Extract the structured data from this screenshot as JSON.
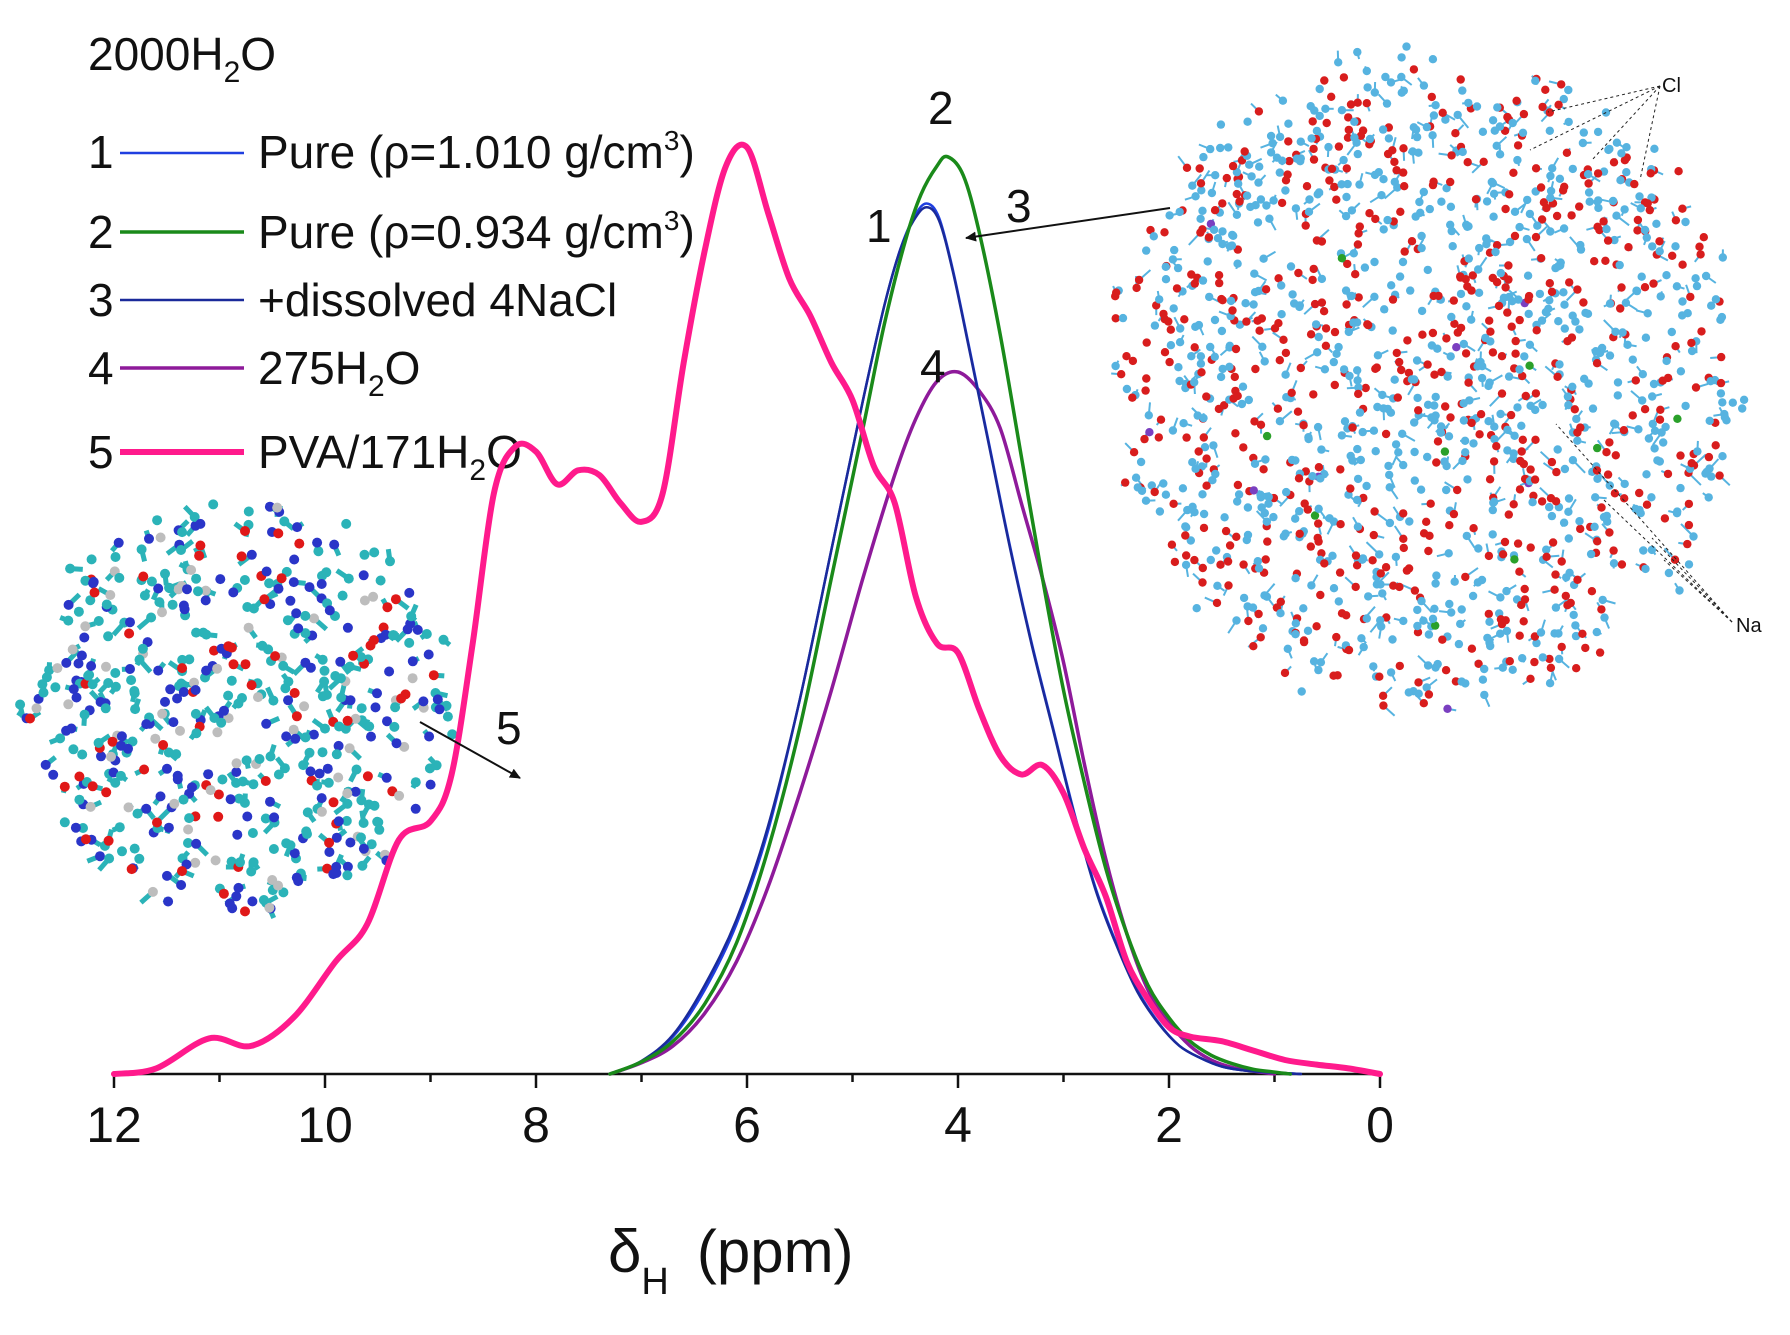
{
  "chart_data": {
    "type": "line",
    "title": "2000H₂O",
    "xlabel": "δH (ppm)",
    "xlabel_symbol": "δ",
    "xlabel_sub": "H",
    "xlabel_unit": "(ppm)",
    "ylabel": "",
    "xlim": [
      12,
      0
    ],
    "xticks": [
      12,
      10,
      8,
      6,
      4,
      2,
      0
    ],
    "ylim": [
      0,
      1.0
    ],
    "grid": false,
    "legend_position": "top-left",
    "series": [
      {
        "id": "1",
        "name": "Pure (ρ=1.010 g/cm³)",
        "color": "#1f3fe0",
        "width": 2.5,
        "x": [
          7.3,
          7.0,
          6.7,
          6.4,
          6.1,
          5.8,
          5.5,
          5.2,
          4.9,
          4.7,
          4.55,
          4.42,
          4.3,
          4.18,
          4.05,
          3.9,
          3.7,
          3.5,
          3.3,
          3.1,
          2.9,
          2.7,
          2.5,
          2.3,
          2.1,
          1.9,
          1.7,
          1.5,
          1.3,
          1.1,
          0.9,
          0.75
        ],
        "y": [
          0.0,
          0.013,
          0.04,
          0.09,
          0.16,
          0.26,
          0.4,
          0.56,
          0.72,
          0.82,
          0.88,
          0.915,
          0.93,
          0.915,
          0.86,
          0.78,
          0.67,
          0.56,
          0.46,
          0.37,
          0.28,
          0.2,
          0.14,
          0.09,
          0.055,
          0.03,
          0.017,
          0.008,
          0.004,
          0.002,
          0.001,
          0.0
        ]
      },
      {
        "id": "2",
        "name": "Pure (ρ=0.934 g/cm³)",
        "color": "#1a8a1a",
        "width": 3.5,
        "x": [
          7.3,
          7.0,
          6.7,
          6.4,
          6.1,
          5.8,
          5.5,
          5.2,
          4.9,
          4.7,
          4.5,
          4.35,
          4.2,
          4.1,
          3.95,
          3.8,
          3.6,
          3.4,
          3.2,
          3.0,
          2.8,
          2.6,
          2.4,
          2.2,
          2.0,
          1.8,
          1.6,
          1.4,
          1.2,
          1.0,
          0.85
        ],
        "y": [
          0.0,
          0.013,
          0.035,
          0.075,
          0.14,
          0.24,
          0.37,
          0.53,
          0.69,
          0.8,
          0.89,
          0.94,
          0.97,
          0.98,
          0.96,
          0.9,
          0.79,
          0.66,
          0.53,
          0.41,
          0.31,
          0.22,
          0.15,
          0.095,
          0.06,
          0.035,
          0.02,
          0.011,
          0.005,
          0.002,
          0.0
        ]
      },
      {
        "id": "3",
        "name": "+dissolved 4NaCl",
        "color": "#1a2a9a",
        "width": 2.5,
        "x": [
          7.3,
          7.0,
          6.7,
          6.4,
          6.1,
          5.8,
          5.5,
          5.2,
          4.9,
          4.7,
          4.55,
          4.42,
          4.3,
          4.18,
          4.05,
          3.9,
          3.7,
          3.5,
          3.3,
          3.1,
          2.9,
          2.7,
          2.5,
          2.3,
          2.1,
          1.9,
          1.7,
          1.5,
          1.3,
          1.1,
          0.9,
          0.75
        ],
        "y": [
          0.0,
          0.014,
          0.042,
          0.095,
          0.165,
          0.265,
          0.4,
          0.56,
          0.72,
          0.82,
          0.88,
          0.912,
          0.926,
          0.912,
          0.858,
          0.778,
          0.668,
          0.558,
          0.458,
          0.368,
          0.278,
          0.198,
          0.138,
          0.088,
          0.054,
          0.03,
          0.017,
          0.008,
          0.004,
          0.002,
          0.001,
          0.0
        ]
      },
      {
        "id": "4",
        "name": "275H₂O",
        "color": "#8e1a9a",
        "width": 3.5,
        "x": [
          7.3,
          7.0,
          6.7,
          6.4,
          6.1,
          5.8,
          5.5,
          5.2,
          4.9,
          4.6,
          4.4,
          4.2,
          4.0,
          3.8,
          3.6,
          3.4,
          3.2,
          3.0,
          2.8,
          2.6,
          2.4,
          2.2,
          2.0,
          1.8,
          1.6,
          1.4,
          1.2,
          1.0
        ],
        "y": [
          0.0,
          0.012,
          0.03,
          0.065,
          0.12,
          0.2,
          0.3,
          0.41,
          0.53,
          0.64,
          0.7,
          0.74,
          0.75,
          0.73,
          0.69,
          0.61,
          0.53,
          0.44,
          0.33,
          0.23,
          0.15,
          0.09,
          0.055,
          0.03,
          0.015,
          0.007,
          0.003,
          0.0
        ]
      },
      {
        "id": "5",
        "name": "PVA/171H₂O",
        "color": "#ff1a8c",
        "width": 6,
        "x": [
          12.0,
          11.6,
          11.1,
          10.7,
          10.3,
          9.9,
          9.6,
          9.3,
          9.0,
          8.8,
          8.6,
          8.4,
          8.2,
          8.0,
          7.8,
          7.6,
          7.4,
          7.2,
          7.0,
          6.8,
          6.6,
          6.4,
          6.2,
          6.0,
          5.8,
          5.6,
          5.4,
          5.2,
          5.0,
          4.8,
          4.6,
          4.4,
          4.2,
          4.0,
          3.8,
          3.6,
          3.4,
          3.2,
          3.0,
          2.8,
          2.6,
          2.4,
          2.2,
          2.0,
          1.8,
          1.5,
          1.2,
          0.9,
          0.6,
          0.3,
          0.0
        ],
        "y": [
          0.0,
          0.006,
          0.038,
          0.03,
          0.06,
          0.12,
          0.16,
          0.25,
          0.27,
          0.32,
          0.46,
          0.62,
          0.67,
          0.665,
          0.63,
          0.645,
          0.64,
          0.61,
          0.59,
          0.62,
          0.76,
          0.88,
          0.97,
          0.99,
          0.92,
          0.85,
          0.81,
          0.76,
          0.72,
          0.65,
          0.61,
          0.51,
          0.46,
          0.45,
          0.39,
          0.34,
          0.32,
          0.33,
          0.3,
          0.24,
          0.19,
          0.12,
          0.08,
          0.05,
          0.04,
          0.035,
          0.025,
          0.015,
          0.01,
          0.006,
          0.0
        ]
      }
    ],
    "legend": {
      "title": "2000H₂O",
      "title_main": "2000H",
      "title_sub": "2",
      "title_tail": "O",
      "entries": [
        {
          "id": "1",
          "label": "Pure (ρ=1.010 g/cm³)",
          "main": "Pure (ρ=1.010 g/cm",
          "sup": "3",
          "tail": ")"
        },
        {
          "id": "2",
          "label": "Pure (ρ=0.934 g/cm³)",
          "main": "Pure (ρ=0.934 g/cm",
          "sup": "3",
          "tail": ")"
        },
        {
          "id": "3",
          "label": "+dissolved 4NaCl"
        },
        {
          "id": "4",
          "label": "275H₂O",
          "main": "275H",
          "sub": "2",
          "tail": "O"
        },
        {
          "id": "5",
          "label": "PVA/171H₂O",
          "main": "PVA/171H",
          "sub": "2",
          "tail": "O"
        }
      ]
    },
    "annotations": [
      {
        "text": "1",
        "target_series": "1"
      },
      {
        "text": "2",
        "target_series": "2"
      },
      {
        "text": "3",
        "target_series": "3"
      },
      {
        "text": "4",
        "target_series": "4"
      },
      {
        "text": "5",
        "target_series": "5"
      }
    ],
    "insets": [
      {
        "id": "nacl-water-cluster",
        "labels": [
          "Cl",
          "Na"
        ],
        "atom_colors": [
          "#d81d1d",
          "#56b3e0",
          "#2aa02a",
          "#7a3fc0"
        ]
      },
      {
        "id": "pva-water-cluster",
        "labels": [],
        "atom_colors": [
          "#2a35c8",
          "#2bb3b8",
          "#e01818",
          "#bdbdbd"
        ]
      }
    ]
  }
}
